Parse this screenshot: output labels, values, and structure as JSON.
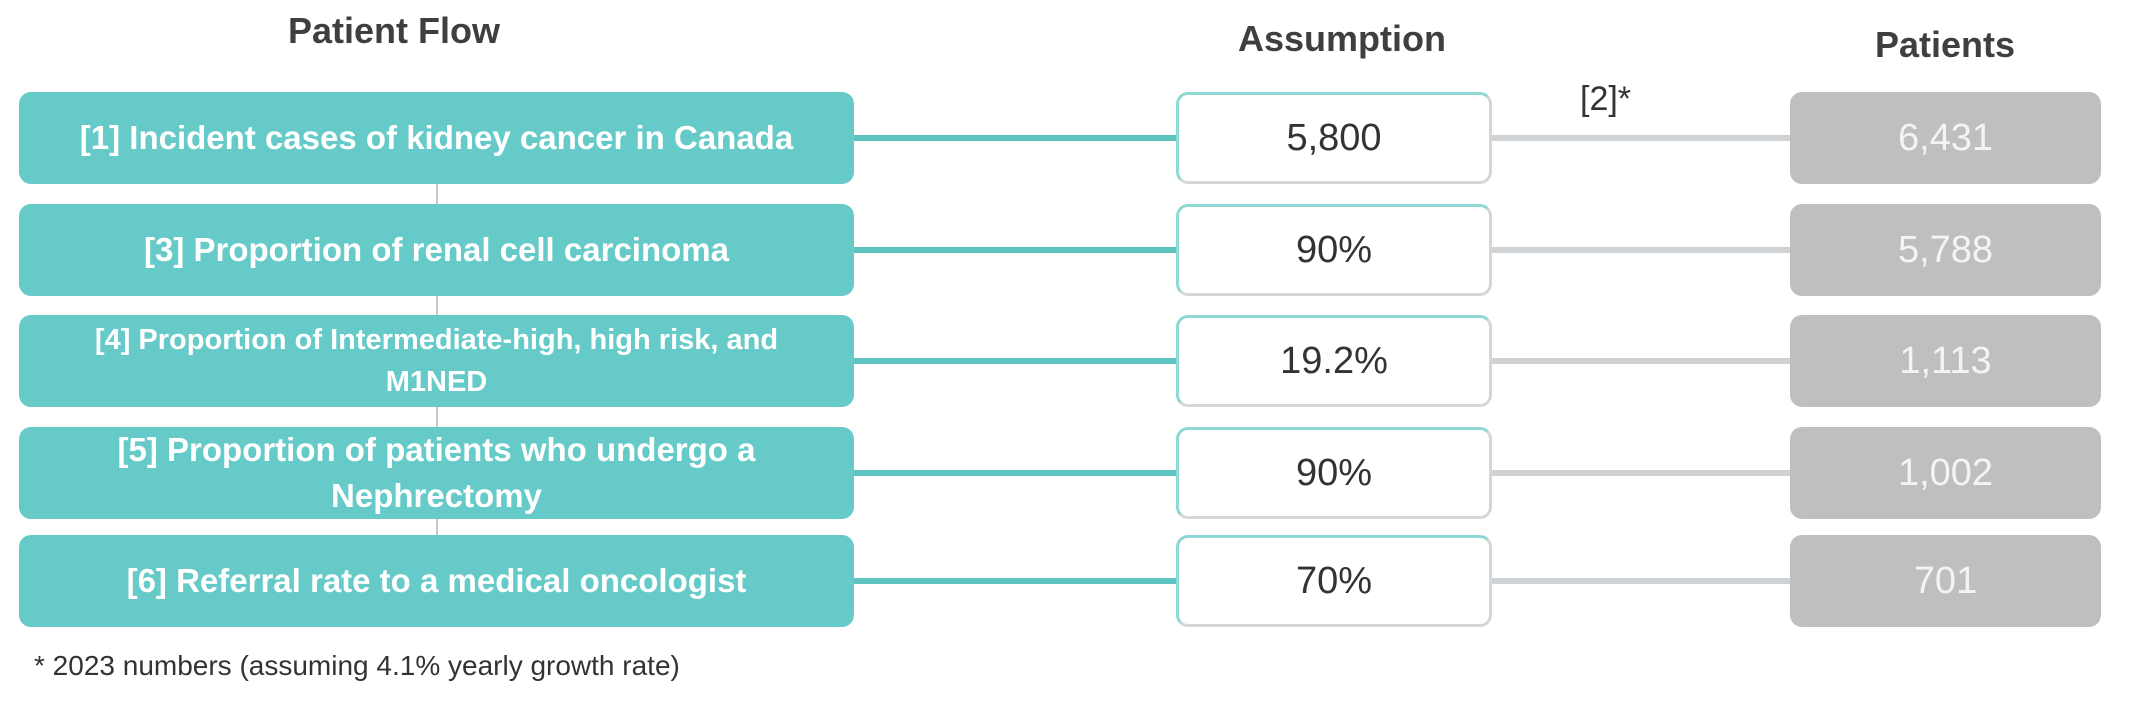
{
  "headers": {
    "flow": "Patient Flow",
    "assumption": "Assumption",
    "patients": "Patients"
  },
  "rows": [
    {
      "label": "[1] Incident cases of kidney cancer in Canada",
      "assumption": "5,800",
      "patients": "6,431"
    },
    {
      "label": "[3] Proportion of renal cell carcinoma",
      "assumption": "90%",
      "patients": "5,788"
    },
    {
      "label": "[4] Proportion of Intermediate-high, high risk, and M1NED",
      "assumption": "19.2%",
      "patients": "1,113"
    },
    {
      "label": "[5] Proportion of patients who undergo a Nephrectomy",
      "assumption": "90%",
      "patients": "1,002"
    },
    {
      "label": "[6] Referral rate to a medical oncologist",
      "assumption": "70%",
      "patients": "701"
    }
  ],
  "note": "[2]*",
  "footnote": "* 2023 numbers (assuming 4.1% yearly growth rate)"
}
